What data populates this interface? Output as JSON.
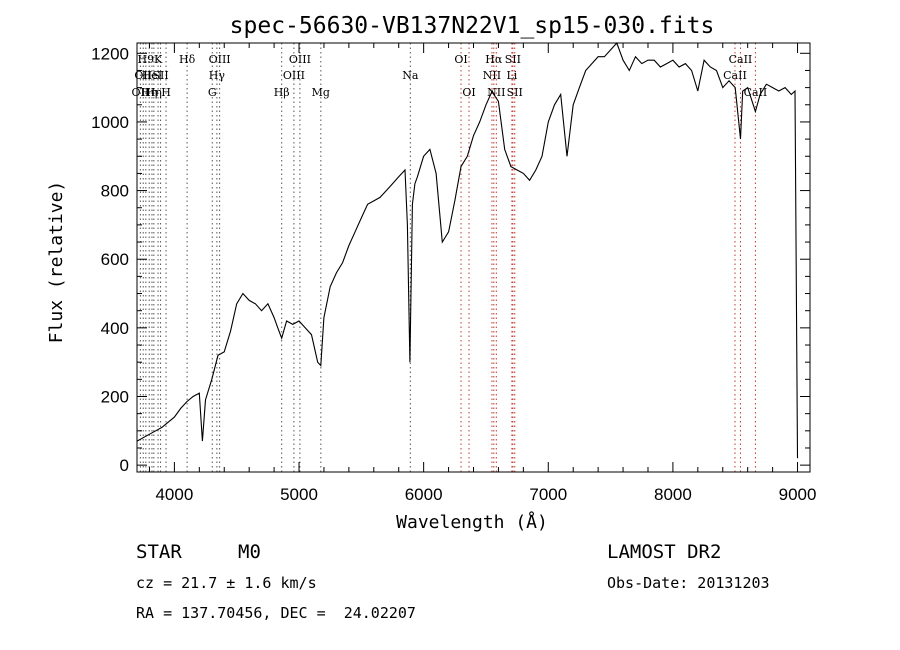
{
  "chart_data": {
    "type": "line",
    "title": "spec-56630-VB137N22V1_sp15-030.fits",
    "xlabel": "Wavelength (Å)",
    "ylabel": "Flux (relative)",
    "xlim": [
      3700,
      9100
    ],
    "ylim": [
      -20,
      1230
    ],
    "xticks": [
      4000,
      5000,
      6000,
      7000,
      8000,
      9000
    ],
    "yticks": [
      0,
      200,
      400,
      600,
      800,
      1000,
      1200
    ],
    "series": [
      {
        "x": [
          3700,
          3750,
          3800,
          3850,
          3900,
          3950,
          4000,
          4050,
          4100,
          4150,
          4200,
          4225,
          4250,
          4300,
          4350,
          4400,
          4450,
          4500,
          4550,
          4600,
          4650,
          4700,
          4750,
          4800,
          4830,
          4861,
          4900,
          4950,
          5000,
          5050,
          5100,
          5150,
          5175,
          5200,
          5250,
          5300,
          5350,
          5400,
          5450,
          5500,
          5550,
          5600,
          5650,
          5700,
          5750,
          5800,
          5850,
          5870,
          5890,
          5910,
          5930,
          5950,
          6000,
          6050,
          6100,
          6150,
          6200,
          6250,
          6300,
          6350,
          6400,
          6450,
          6500,
          6550,
          6563,
          6600,
          6650,
          6700,
          6750,
          6800,
          6850,
          6900,
          6950,
          7000,
          7050,
          7100,
          7150,
          7200,
          7250,
          7300,
          7350,
          7400,
          7450,
          7500,
          7550,
          7600,
          7650,
          7700,
          7750,
          7800,
          7850,
          7900,
          7950,
          8000,
          8050,
          8100,
          8150,
          8200,
          8250,
          8300,
          8350,
          8400,
          8450,
          8500,
          8542,
          8560,
          8600,
          8662,
          8700,
          8750,
          8800,
          8850,
          8900,
          8950,
          8980,
          9000
        ],
        "y": [
          70,
          80,
          90,
          100,
          110,
          125,
          140,
          165,
          185,
          200,
          210,
          70,
          190,
          250,
          320,
          330,
          390,
          470,
          500,
          480,
          470,
          450,
          470,
          430,
          400,
          370,
          420,
          410,
          420,
          400,
          380,
          300,
          290,
          430,
          520,
          560,
          590,
          640,
          680,
          720,
          760,
          770,
          780,
          800,
          820,
          840,
          860,
          700,
          300,
          760,
          820,
          840,
          900,
          920,
          850,
          650,
          680,
          770,
          870,
          900,
          960,
          1000,
          1050,
          1090,
          1080,
          1060,
          920,
          870,
          860,
          850,
          830,
          860,
          900,
          1000,
          1050,
          1080,
          900,
          1050,
          1100,
          1150,
          1170,
          1190,
          1190,
          1210,
          1230,
          1180,
          1150,
          1190,
          1170,
          1180,
          1180,
          1160,
          1170,
          1180,
          1160,
          1170,
          1150,
          1090,
          1180,
          1160,
          1150,
          1100,
          1120,
          1100,
          950,
          1090,
          1100,
          1030,
          1080,
          1110,
          1100,
          1090,
          1100,
          1080,
          1090,
          20
        ]
      }
    ],
    "lines": [
      {
        "w": 3727,
        "label": "OII",
        "row": 3
      },
      {
        "w": 3750,
        "label": "OII",
        "row": 2
      },
      {
        "w": 3771,
        "label": "H9",
        "row": 1
      },
      {
        "w": 3798,
        "label": "Hη",
        "row": 3
      },
      {
        "w": 3820,
        "label": "HeI",
        "row": 2
      },
      {
        "w": 3835,
        "label": "Hη",
        "row": 3
      },
      {
        "w": 3869,
        "label": "K",
        "row": 1
      },
      {
        "w": 3889,
        "label": "SII",
        "row": 2
      },
      {
        "w": 3933,
        "label": "H",
        "row": 3
      },
      {
        "w": 4102,
        "label": "Hδ",
        "row": 1
      },
      {
        "w": 4304,
        "label": "G",
        "row": 3
      },
      {
        "w": 4341,
        "label": "Hγ",
        "row": 2
      },
      {
        "w": 4363,
        "label": "OIII",
        "row": 1
      },
      {
        "w": 4861,
        "label": "Hβ",
        "row": 3
      },
      {
        "w": 4959,
        "label": "OIII",
        "row": 2
      },
      {
        "w": 5007,
        "label": "OIII",
        "row": 1
      },
      {
        "w": 5175,
        "label": "Mg",
        "row": 3
      },
      {
        "w": 5893,
        "label": "Na",
        "row": 2
      },
      {
        "w": 6300,
        "label": "OI",
        "row": 1
      },
      {
        "w": 6364,
        "label": "OI",
        "row": 3
      },
      {
        "w": 6548,
        "label": "NII",
        "row": 2
      },
      {
        "w": 6563,
        "label": "Hα",
        "row": 1
      },
      {
        "w": 6583,
        "label": "NII",
        "row": 3
      },
      {
        "w": 6708,
        "label": "Li",
        "row": 2
      },
      {
        "w": 6716,
        "label": "SII",
        "row": 1
      },
      {
        "w": 6731,
        "label": "SII",
        "row": 3
      },
      {
        "w": 8498,
        "label": "CaII",
        "row": 2
      },
      {
        "w": 8542,
        "label": "CaII",
        "row": 1
      },
      {
        "w": 8662,
        "label": "CaII",
        "row": 3
      }
    ]
  },
  "info": {
    "class": "STAR",
    "subclass": "M0",
    "survey": "LAMOST DR2",
    "cz": "cz = 21.7 ± 1.6 km/s",
    "obs_date": "Obs-Date: 20131203",
    "radec": "RA = 137.70456, DEC =  24.02207"
  }
}
